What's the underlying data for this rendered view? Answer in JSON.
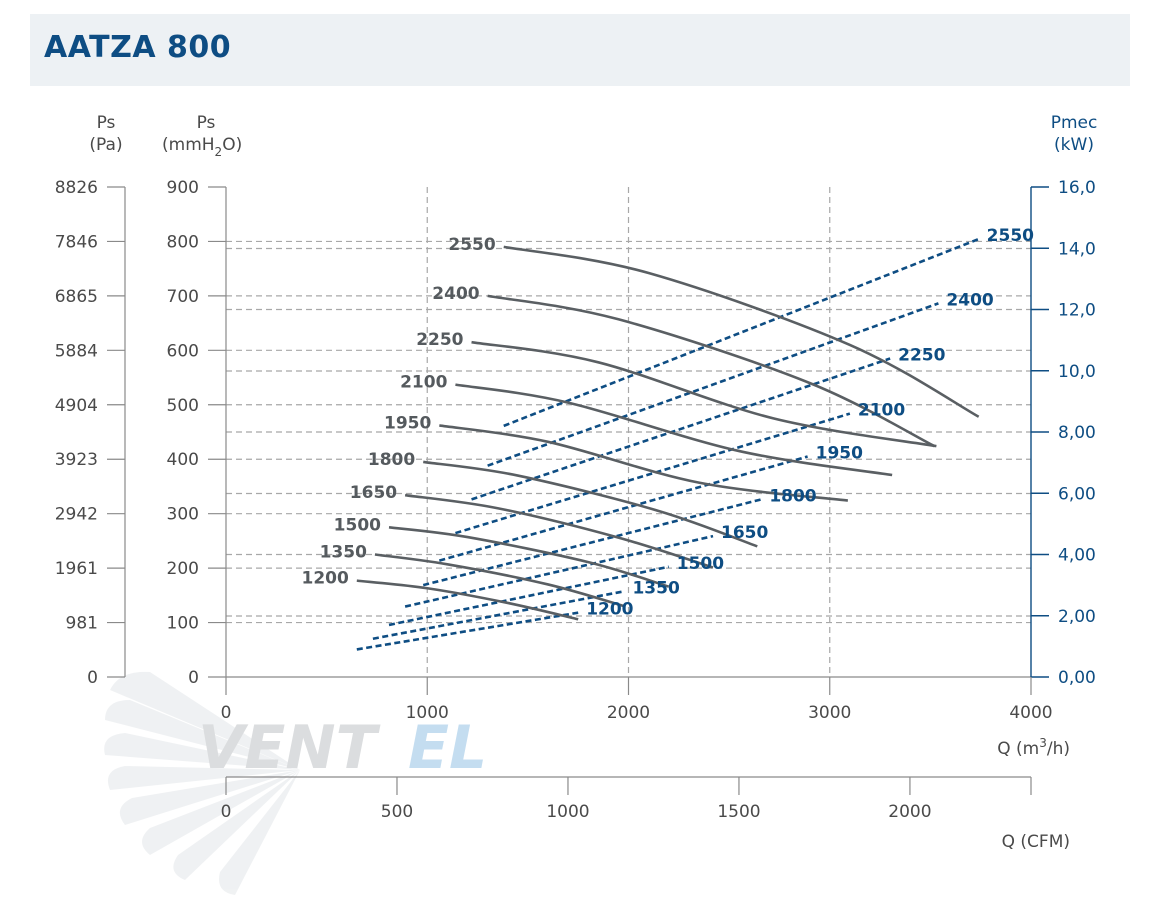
{
  "page": {
    "title": "AATZA 800"
  },
  "brand": {
    "watermark_dark": "VENT",
    "watermark_light": "EL"
  },
  "colors": {
    "pressure_curve": "#5a5f63",
    "power_curve": "#0e4d83",
    "grid": "#a8a8a8",
    "title_bar": "#edf1f4"
  },
  "chart_data": {
    "type": "line",
    "title": "AATZA 800",
    "axes": {
      "x": {
        "label": "Q (m3/h)",
        "label_main": "Q (m",
        "label_sup": "3",
        "label_tail": "/h)",
        "range": [
          0,
          4000
        ],
        "ticks": [
          0,
          1000,
          2000,
          3000,
          4000
        ]
      },
      "x_secondary": {
        "label": "Q (CFM)",
        "ticks": [
          0,
          500,
          1000,
          1500,
          2000
        ],
        "max": 2354
      },
      "y_left_mm": {
        "label_top": "Ps",
        "label_unit_main": "(mmH",
        "label_unit_sub": "2",
        "label_unit_tail": "O)",
        "range": [
          0,
          900
        ],
        "ticks": [
          0,
          100,
          200,
          300,
          400,
          500,
          600,
          700,
          800,
          900
        ]
      },
      "y_left_pa": {
        "label_top": "Ps",
        "label_unit": "(Pa)",
        "ticks": [
          "0",
          "981",
          "1961",
          "2942",
          "3923",
          "4904",
          "5884",
          "6865",
          "7846",
          "8826"
        ]
      },
      "y_right": {
        "label_top": "Pmec",
        "label_unit": "(kW)",
        "range": [
          0,
          16
        ],
        "ticks": [
          "0,00",
          "2,00",
          "4,00",
          "6,00",
          "8,00",
          "10,0",
          "12,0",
          "14,0",
          "16,0"
        ]
      }
    },
    "grid_x": [
      1000,
      2000,
      3000
    ],
    "grid_y_mm": [
      100,
      112,
      200,
      225,
      300,
      337,
      400,
      450,
      500,
      562,
      600,
      675,
      700,
      787,
      800
    ],
    "pressure_series": [
      {
        "name": "1200",
        "unit": "mmH2O",
        "points": [
          [
            650,
            177
          ],
          [
            1000,
            163
          ],
          [
            1400,
            136
          ],
          [
            1750,
            106
          ]
        ]
      },
      {
        "name": "1350",
        "unit": "mmH2O",
        "points": [
          [
            740,
            225
          ],
          [
            1100,
            207
          ],
          [
            1600,
            170
          ],
          [
            1980,
            130
          ]
        ]
      },
      {
        "name": "1500",
        "unit": "mmH2O",
        "points": [
          [
            810,
            275
          ],
          [
            1200,
            257
          ],
          [
            1800,
            211
          ],
          [
            2200,
            166
          ]
        ]
      },
      {
        "name": "1650",
        "unit": "mmH2O",
        "points": [
          [
            890,
            334
          ],
          [
            1350,
            310
          ],
          [
            1950,
            256
          ],
          [
            2420,
            201
          ]
        ]
      },
      {
        "name": "1800",
        "unit": "mmH2O",
        "points": [
          [
            980,
            395
          ],
          [
            1450,
            370
          ],
          [
            2150,
            305
          ],
          [
            2640,
            240
          ]
        ]
      },
      {
        "name": "1950",
        "unit": "mmH2O",
        "points": [
          [
            1060,
            462
          ],
          [
            1600,
            432
          ],
          [
            2350,
            357
          ],
          [
            3090,
            324
          ]
        ]
      },
      {
        "name": "2100",
        "unit": "mmH2O",
        "points": [
          [
            1140,
            537
          ],
          [
            1700,
            504
          ],
          [
            2550,
            415
          ],
          [
            3310,
            371
          ]
        ]
      },
      {
        "name": "2250",
        "unit": "mmH2O",
        "points": [
          [
            1220,
            615
          ],
          [
            1850,
            578
          ],
          [
            2720,
            475
          ],
          [
            3530,
            424
          ]
        ]
      },
      {
        "name": "2400",
        "unit": "mmH2O",
        "points": [
          [
            1300,
            700
          ],
          [
            1950,
            657
          ],
          [
            2900,
            540
          ],
          [
            3520,
            424
          ]
        ]
      },
      {
        "name": "2550",
        "unit": "mmH2O",
        "points": [
          [
            1380,
            790
          ],
          [
            2100,
            742
          ],
          [
            3100,
            610
          ],
          [
            3740,
            478
          ]
        ]
      }
    ],
    "power_series": [
      {
        "name": "1200",
        "unit": "kW",
        "points": [
          [
            650,
            0.9
          ],
          [
            1750,
            2.1
          ]
        ]
      },
      {
        "name": "1350",
        "unit": "kW",
        "points": [
          [
            730,
            1.25
          ],
          [
            1980,
            2.8
          ]
        ]
      },
      {
        "name": "1500",
        "unit": "kW",
        "points": [
          [
            810,
            1.7
          ],
          [
            2200,
            3.6
          ]
        ]
      },
      {
        "name": "1650",
        "unit": "kW",
        "points": [
          [
            890,
            2.3
          ],
          [
            2420,
            4.6
          ]
        ]
      },
      {
        "name": "1800",
        "unit": "kW",
        "points": [
          [
            980,
            3.0
          ],
          [
            2660,
            5.8
          ]
        ]
      },
      {
        "name": "1950",
        "unit": "kW",
        "points": [
          [
            1060,
            3.8
          ],
          [
            2890,
            7.2
          ]
        ]
      },
      {
        "name": "2100",
        "unit": "kW",
        "points": [
          [
            1140,
            4.7
          ],
          [
            3100,
            8.6
          ]
        ]
      },
      {
        "name": "2250",
        "unit": "kW",
        "points": [
          [
            1220,
            5.8
          ],
          [
            3300,
            10.4
          ]
        ]
      },
      {
        "name": "2400",
        "unit": "kW",
        "points": [
          [
            1300,
            6.9
          ],
          [
            3540,
            12.2
          ]
        ]
      },
      {
        "name": "2550",
        "unit": "kW",
        "points": [
          [
            1380,
            8.2
          ],
          [
            3740,
            14.3
          ]
        ]
      }
    ]
  }
}
